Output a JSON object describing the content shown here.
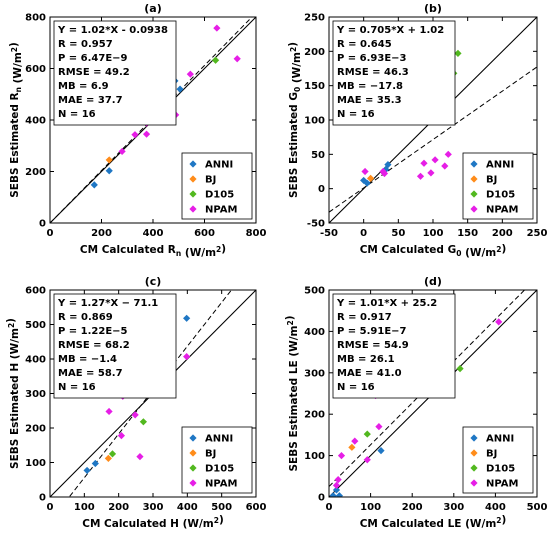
{
  "colors": {
    "ANNI": "#1f77c4",
    "BJ": "#ff8c1a",
    "D105": "#52b81f",
    "NPAM": "#e61ee6"
  },
  "legend_labels": [
    "ANNI",
    "BJ",
    "D105",
    "NPAM"
  ],
  "chart_data": [
    {
      "type": "scatter",
      "panel_label": "(a)",
      "xlabel": "CM Calculated R_n (W/m^2)",
      "ylabel": "SEBS Estimated R_n (W/m^2)",
      "xlim": [
        0,
        800
      ],
      "ylim": [
        0,
        800
      ],
      "xticks": [
        0,
        200,
        400,
        600,
        800
      ],
      "yticks": [
        0,
        200,
        400,
        600,
        800
      ],
      "stats": [
        "Y = 1.02*X - 0.0938",
        "R = 0.957",
        "P = 6.47E−9",
        "RMSE = 49.2",
        "MB = 6.9",
        "MAE = 37.7",
        "N = 16"
      ],
      "fit": {
        "slope": 1.02,
        "intercept": -0.0938
      },
      "series": [
        {
          "name": "ANNI",
          "points": [
            [
              172,
              148
            ],
            [
              230,
              203
            ],
            [
              360,
              405
            ],
            [
              485,
              552
            ],
            [
              505,
              520
            ]
          ]
        },
        {
          "name": "BJ",
          "points": [
            [
              230,
              245
            ]
          ]
        },
        {
          "name": "D105",
          "points": [
            [
              643,
              632
            ]
          ]
        },
        {
          "name": "NPAM",
          "points": [
            [
              280,
              278
            ],
            [
              330,
              343
            ],
            [
              375,
              345
            ],
            [
              375,
              388
            ],
            [
              470,
              492
            ],
            [
              488,
              420
            ],
            [
              545,
              578
            ],
            [
              648,
              757
            ],
            [
              727,
              638
            ]
          ]
        }
      ]
    },
    {
      "type": "scatter",
      "panel_label": "(b)",
      "xlabel": "CM Calculated G_0 (W/m^2)",
      "ylabel": "SEBS Estimated G_0 (W/m^2)",
      "xlim": [
        -50,
        250
      ],
      "ylim": [
        -50,
        250
      ],
      "xticks": [
        -50,
        0,
        50,
        100,
        150,
        200,
        250
      ],
      "yticks": [
        -50,
        0,
        50,
        100,
        150,
        200,
        250
      ],
      "stats": [
        "Y = 0.705*X + 1.02",
        "R = 0.645",
        "P = 6.93E−3",
        "RMSE = 46.3",
        "MB = −17.8",
        "MAE = 35.3",
        "N = 16"
      ],
      "fit": {
        "slope": 0.705,
        "intercept": 1.02
      },
      "series": [
        {
          "name": "ANNI",
          "points": [
            [
              0,
              12
            ],
            [
              5,
              8
            ],
            [
              32,
              28
            ],
            [
              35,
              35
            ]
          ]
        },
        {
          "name": "BJ",
          "points": [
            [
              10,
              15
            ]
          ]
        },
        {
          "name": "D105",
          "points": [
            [
              130,
              168
            ],
            [
              136,
              197
            ]
          ]
        },
        {
          "name": "NPAM",
          "points": [
            [
              2,
              25
            ],
            [
              28,
              25
            ],
            [
              30,
              22
            ],
            [
              82,
              18
            ],
            [
              87,
              37
            ],
            [
              97,
              23
            ],
            [
              103,
              42
            ],
            [
              117,
              33
            ],
            [
              122,
              50
            ]
          ]
        }
      ]
    },
    {
      "type": "scatter",
      "panel_label": "(c)",
      "xlabel": "CM Calculated H (W/m^2)",
      "ylabel": "SEBS Estimated H (W/m^2)",
      "xlim": [
        0,
        600
      ],
      "ylim": [
        0,
        600
      ],
      "xticks": [
        0,
        100,
        200,
        300,
        400,
        500,
        600
      ],
      "yticks": [
        0,
        100,
        200,
        300,
        400,
        500,
        600
      ],
      "stats": [
        "Y = 1.27*X − 71.1",
        "R = 0.869",
        "P = 1.22E−5",
        "RMSE = 68.2",
        "MB = −1.4",
        "MAE = 58.7",
        "N = 16"
      ],
      "fit": {
        "slope": 1.27,
        "intercept": -71.1
      },
      "series": [
        {
          "name": "ANNI",
          "points": [
            [
              108,
              77
            ],
            [
              132,
              97
            ],
            [
              305,
              378
            ],
            [
              398,
              518
            ]
          ]
        },
        {
          "name": "BJ",
          "points": [
            [
              170,
              112
            ]
          ]
        },
        {
          "name": "D105",
          "points": [
            [
              182,
              125
            ],
            [
              272,
              218
            ]
          ]
        },
        {
          "name": "NPAM",
          "points": [
            [
              172,
              248
            ],
            [
              208,
              178
            ],
            [
              212,
              292
            ],
            [
              248,
              238
            ],
            [
              262,
              117
            ],
            [
              313,
              404
            ],
            [
              333,
              368
            ],
            [
              343,
              316
            ],
            [
              398,
              407
            ]
          ]
        }
      ]
    },
    {
      "type": "scatter",
      "panel_label": "(d)",
      "xlabel": "CM Calculated LE (W/m^2)",
      "ylabel": "SEBS Estimated LE (W/m^2)",
      "xlim": [
        0,
        500
      ],
      "ylim": [
        0,
        500
      ],
      "xticks": [
        0,
        100,
        200,
        300,
        400,
        500
      ],
      "yticks": [
        0,
        100,
        200,
        300,
        400,
        500
      ],
      "stats": [
        "Y = 1.01*X + 25.2",
        "R = 0.917",
        "P = 5.91E−7",
        "RMSE = 54.9",
        "MB = 26.1",
        "MAE = 41.0",
        "N = 16"
      ],
      "fit": {
        "slope": 1.01,
        "intercept": 25.2
      },
      "series": [
        {
          "name": "ANNI",
          "points": [
            [
              10,
              3
            ],
            [
              18,
              17
            ],
            [
              25,
              3
            ],
            [
              125,
              112
            ]
          ]
        },
        {
          "name": "BJ",
          "points": [
            [
              55,
              120
            ]
          ]
        },
        {
          "name": "D105",
          "points": [
            [
              92,
              152
            ],
            [
              315,
              310
            ]
          ]
        },
        {
          "name": "NPAM",
          "points": [
            [
              18,
              28
            ],
            [
              22,
              42
            ],
            [
              30,
              100
            ],
            [
              62,
              135
            ],
            [
              92,
              90
            ],
            [
              112,
              245
            ],
            [
              120,
              170
            ],
            [
              208,
              307
            ],
            [
              408,
              423
            ]
          ]
        }
      ]
    }
  ]
}
